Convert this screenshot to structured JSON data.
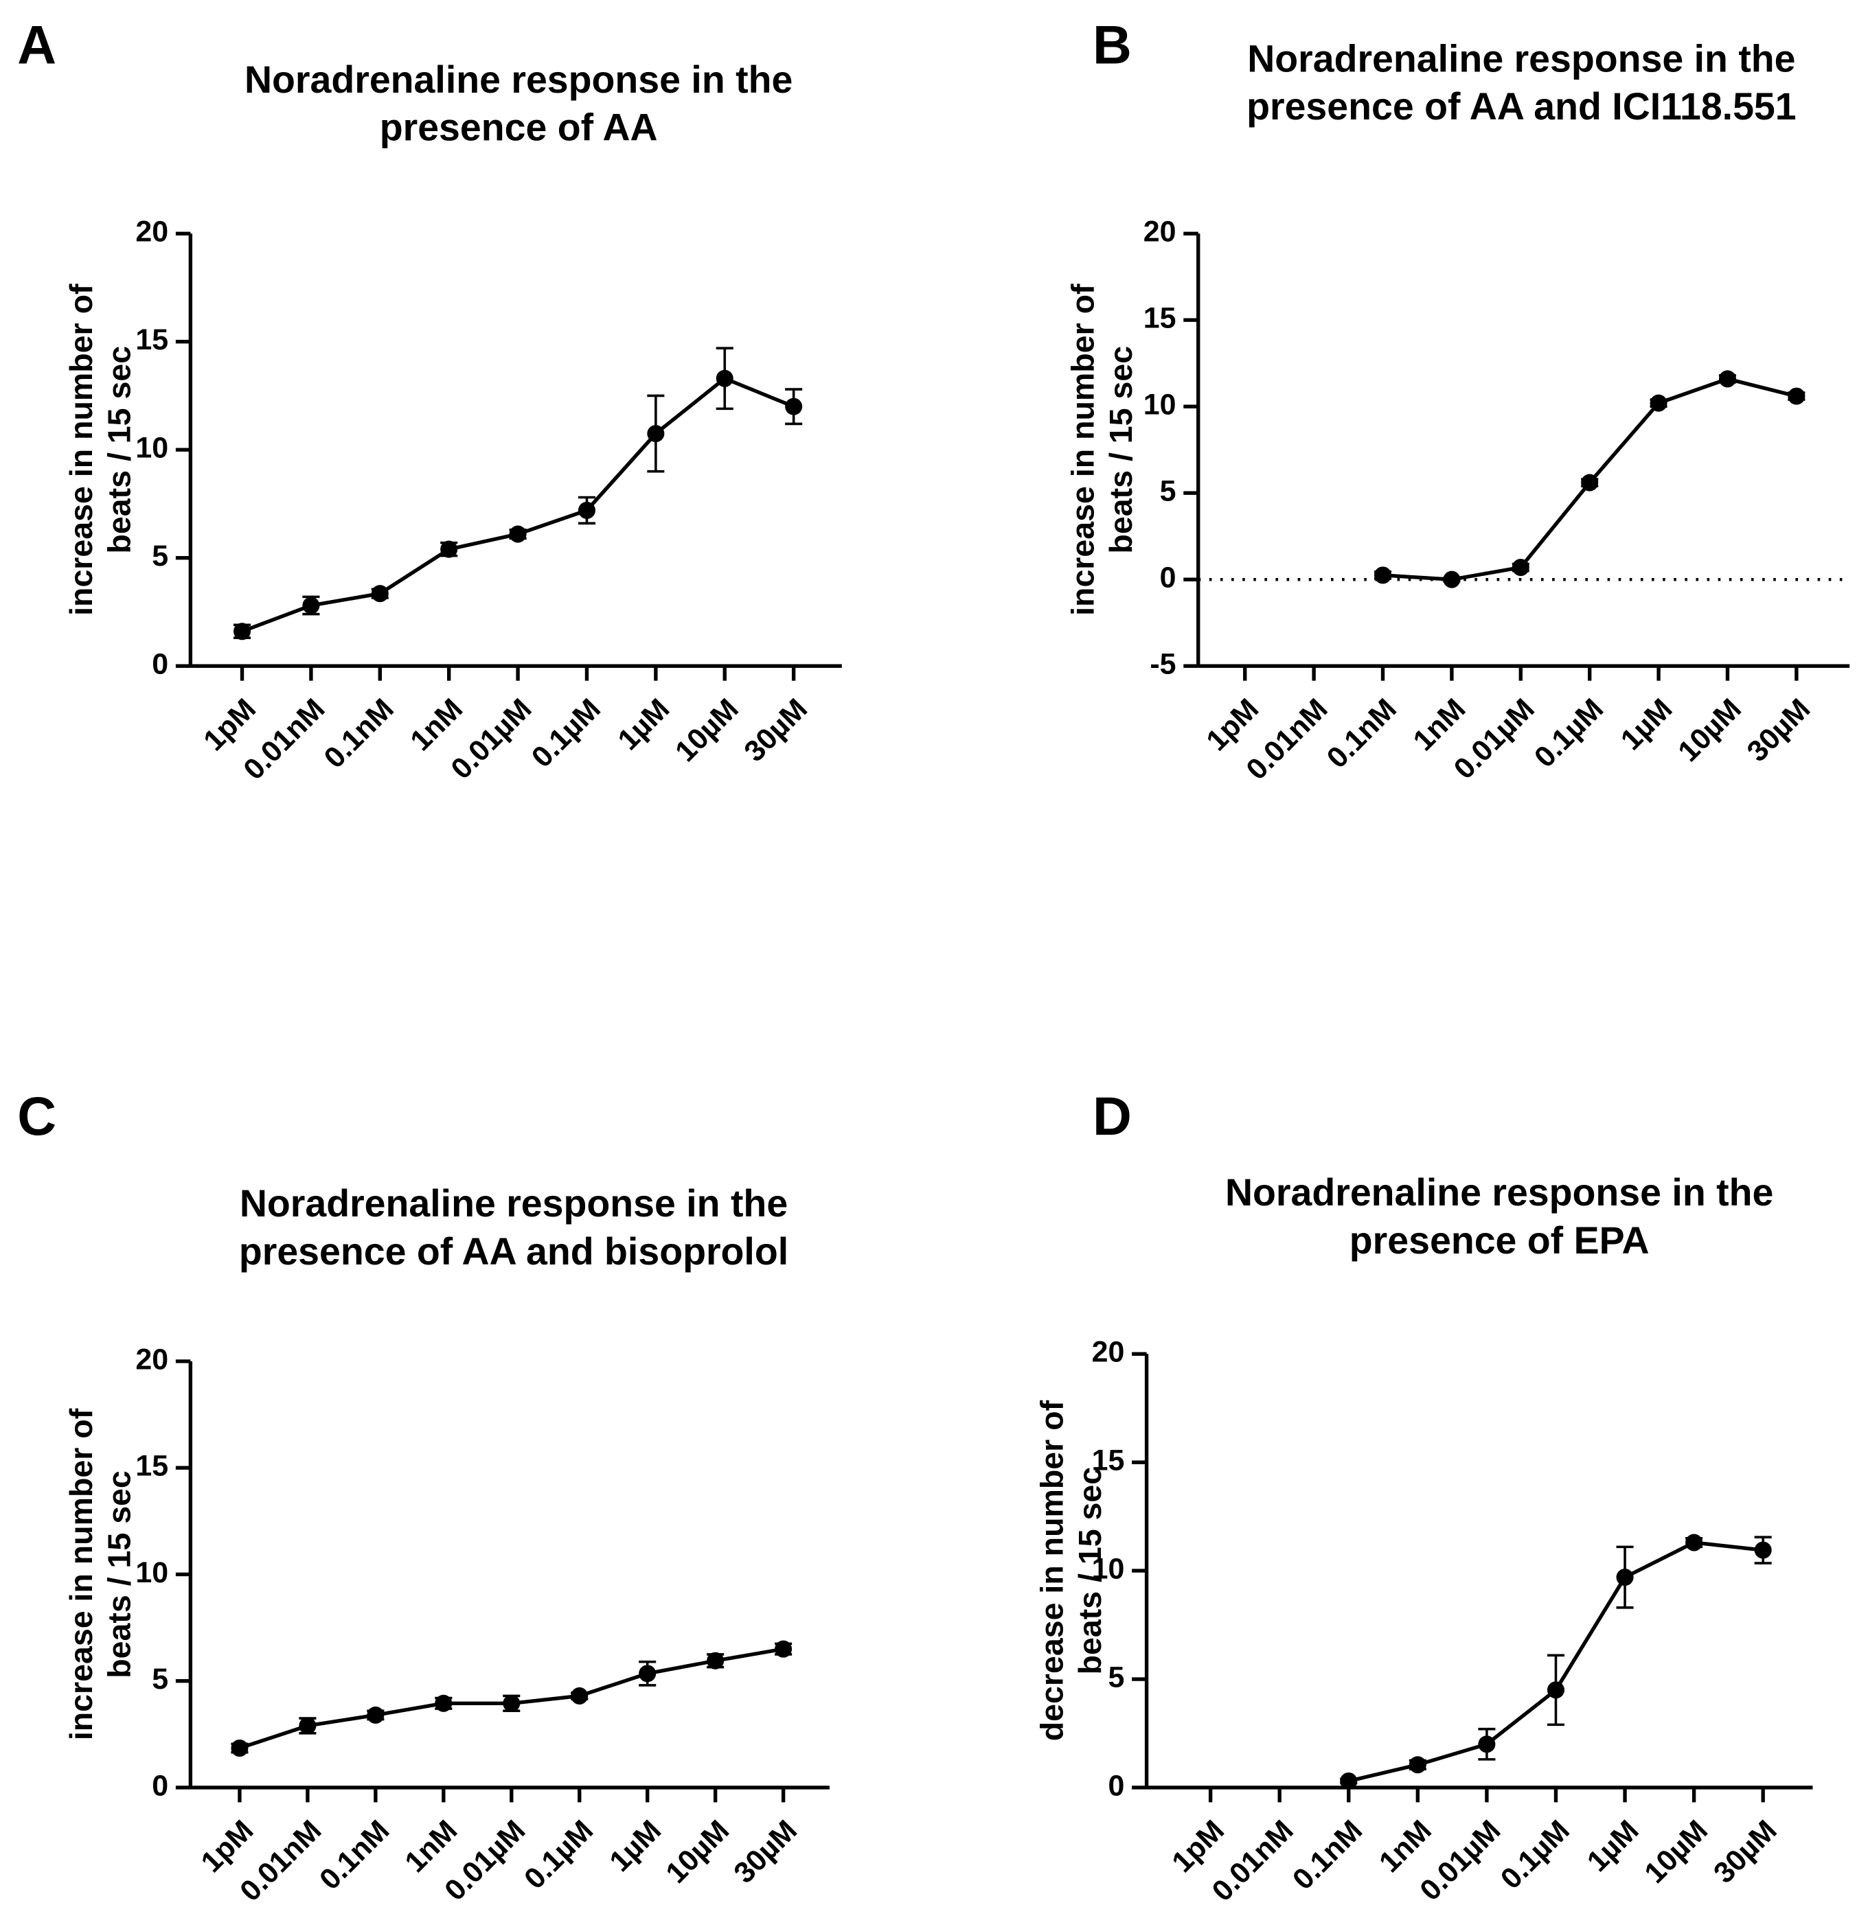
{
  "chart_data": [
    {
      "type": "line",
      "panel": "A",
      "title": [
        "Noradrenaline response in the",
        "presence of AA"
      ],
      "ylabel": [
        "increase in number of",
        "beats / 15 sec"
      ],
      "categories": [
        "1pM",
        "0.01nM",
        "0.1nM",
        "1nM",
        "0.01µM",
        "0.1µM",
        "1µM",
        "10µM",
        "30µM"
      ],
      "values": [
        1.6,
        2.8,
        3.35,
        5.4,
        6.1,
        7.2,
        10.75,
        13.3,
        12.0
      ],
      "errors": [
        0.3,
        0.4,
        0.2,
        0.3,
        0.2,
        0.6,
        1.75,
        1.4,
        0.8
      ],
      "color": "#000000",
      "ylim": [
        0,
        20
      ],
      "yticks": [
        0,
        5,
        10,
        15,
        20
      ]
    },
    {
      "type": "line",
      "panel": "B",
      "title": [
        "Noradrenaline response in the",
        "presence of AA and ICI118.551"
      ],
      "ylabel": [
        "increase in number of",
        "beats / 15 sec"
      ],
      "categories": [
        "1pM",
        "0.01nM",
        "0.1nM",
        "1nM",
        "0.01µM",
        "0.1µM",
        "1µM",
        "10µM",
        "30µM"
      ],
      "values": [
        null,
        null,
        0.25,
        0,
        0.7,
        5.6,
        10.2,
        11.6,
        10.6
      ],
      "errors": [
        null,
        null,
        0.2,
        0.1,
        0.2,
        0.2,
        0.2,
        0.2,
        0.2
      ],
      "color": "#000000",
      "ylim": [
        -5,
        20
      ],
      "yticks": [
        -5,
        0,
        5,
        10,
        15,
        20
      ],
      "reference_line": 0
    },
    {
      "type": "line",
      "panel": "C",
      "title": [
        "Noradrenaline response in the",
        "presence of AA and bisoprolol"
      ],
      "ylabel": [
        "increase in number of",
        "beats / 15 sec"
      ],
      "categories": [
        "1pM",
        "0.01nM",
        "0.1nM",
        "1nM",
        "0.01µM",
        "0.1µM",
        "1µM",
        "10µM",
        "30µM"
      ],
      "values": [
        1.85,
        2.9,
        3.4,
        3.95,
        3.95,
        4.3,
        5.35,
        5.95,
        6.5
      ],
      "errors": [
        0.2,
        0.35,
        0.2,
        0.25,
        0.35,
        0.15,
        0.55,
        0.3,
        0.25
      ],
      "color": "#000000",
      "ylim": [
        0,
        20
      ],
      "yticks": [
        0,
        5,
        10,
        15,
        20
      ]
    },
    {
      "type": "line",
      "panel": "D",
      "title": [
        "Noradrenaline response in the",
        "presence of EPA"
      ],
      "ylabel": [
        "decrease in number of",
        "beats / 15 sec"
      ],
      "categories": [
        "1pM",
        "0.01nM",
        "0.1nM",
        "1nM",
        "0.01µM",
        "0.1µM",
        "1µM",
        "10µM",
        "30µM"
      ],
      "values": [
        null,
        null,
        0.3,
        1.05,
        2.0,
        4.5,
        9.7,
        11.3,
        10.95
      ],
      "errors": [
        null,
        null,
        0.1,
        0.2,
        0.7,
        1.6,
        1.4,
        0.2,
        0.6
      ],
      "color": "#000000",
      "ylim": [
        0,
        20
      ],
      "yticks": [
        0,
        5,
        10,
        15,
        20
      ]
    }
  ]
}
